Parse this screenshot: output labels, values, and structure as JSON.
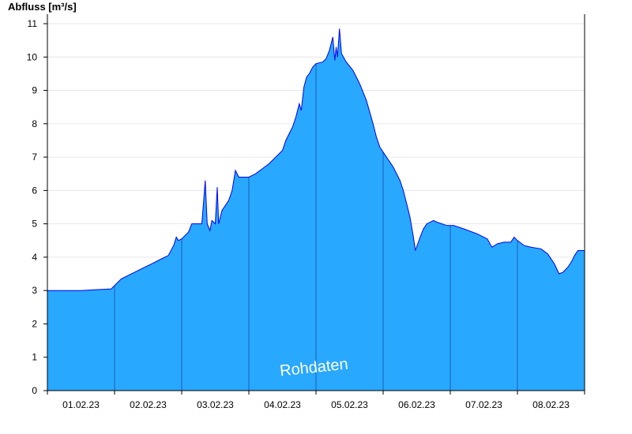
{
  "chart_data": {
    "type": "area",
    "title": "",
    "ylabel": "Abfluss [m³/s]",
    "xlabel": "",
    "watermark": "Rohdaten",
    "ylim": [
      0,
      11
    ],
    "y_ticks": [
      0,
      1,
      2,
      3,
      4,
      5,
      6,
      7,
      8,
      9,
      10,
      11
    ],
    "x_tick_labels": [
      "01.02.23",
      "02.02.23",
      "03.02.23",
      "04.02.23",
      "05.02.23",
      "06.02.23",
      "07.02.23",
      "08.02.23"
    ],
    "day_count": 8,
    "grid": true,
    "colors": {
      "fill": "#29a8ff",
      "line": "#0000ee",
      "day_separator": "#1a5fb0",
      "grid": "#e6e6e6"
    },
    "series": [
      {
        "values": [
          [
            0.0,
            3.0
          ],
          [
            0.05,
            3.0
          ],
          [
            0.5,
            3.0
          ],
          [
            0.95,
            3.05
          ],
          [
            1.0,
            3.15
          ],
          [
            1.1,
            3.35
          ],
          [
            1.2,
            3.45
          ],
          [
            1.3,
            3.55
          ],
          [
            1.4,
            3.65
          ],
          [
            1.55,
            3.8
          ],
          [
            1.7,
            3.95
          ],
          [
            1.8,
            4.05
          ],
          [
            1.88,
            4.35
          ],
          [
            1.92,
            4.6
          ],
          [
            1.95,
            4.5
          ],
          [
            2.0,
            4.55
          ],
          [
            2.1,
            4.75
          ],
          [
            2.15,
            5.0
          ],
          [
            2.3,
            5.0
          ],
          [
            2.35,
            6.3
          ],
          [
            2.38,
            5.0
          ],
          [
            2.42,
            4.8
          ],
          [
            2.45,
            5.1
          ],
          [
            2.5,
            5.0
          ],
          [
            2.53,
            6.1
          ],
          [
            2.55,
            5.0
          ],
          [
            2.6,
            5.4
          ],
          [
            2.7,
            5.7
          ],
          [
            2.75,
            6.0
          ],
          [
            2.8,
            6.6
          ],
          [
            2.85,
            6.4
          ],
          [
            2.9,
            6.4
          ],
          [
            3.0,
            6.4
          ],
          [
            3.05,
            6.45
          ],
          [
            3.1,
            6.5
          ],
          [
            3.2,
            6.65
          ],
          [
            3.3,
            6.8
          ],
          [
            3.4,
            7.0
          ],
          [
            3.5,
            7.2
          ],
          [
            3.55,
            7.5
          ],
          [
            3.6,
            7.7
          ],
          [
            3.65,
            7.9
          ],
          [
            3.7,
            8.2
          ],
          [
            3.75,
            8.6
          ],
          [
            3.78,
            8.4
          ],
          [
            3.82,
            9.1
          ],
          [
            3.86,
            9.4
          ],
          [
            3.9,
            9.5
          ],
          [
            3.95,
            9.7
          ],
          [
            4.0,
            9.8
          ],
          [
            4.1,
            9.85
          ],
          [
            4.15,
            9.95
          ],
          [
            4.2,
            10.2
          ],
          [
            4.25,
            10.6
          ],
          [
            4.28,
            9.9
          ],
          [
            4.3,
            10.3
          ],
          [
            4.32,
            10.0
          ],
          [
            4.35,
            10.85
          ],
          [
            4.38,
            10.1
          ],
          [
            4.45,
            9.85
          ],
          [
            4.55,
            9.6
          ],
          [
            4.65,
            9.2
          ],
          [
            4.75,
            8.7
          ],
          [
            4.85,
            8.0
          ],
          [
            4.9,
            7.6
          ],
          [
            4.95,
            7.3
          ],
          [
            5.05,
            7.0
          ],
          [
            5.15,
            6.7
          ],
          [
            5.25,
            6.3
          ],
          [
            5.3,
            6.0
          ],
          [
            5.35,
            5.6
          ],
          [
            5.4,
            5.2
          ],
          [
            5.45,
            4.6
          ],
          [
            5.48,
            4.2
          ],
          [
            5.55,
            4.6
          ],
          [
            5.6,
            4.85
          ],
          [
            5.65,
            5.0
          ],
          [
            5.75,
            5.1
          ],
          [
            5.8,
            5.05
          ],
          [
            5.95,
            4.95
          ],
          [
            6.05,
            4.95
          ],
          [
            6.2,
            4.85
          ],
          [
            6.4,
            4.7
          ],
          [
            6.55,
            4.55
          ],
          [
            6.62,
            4.3
          ],
          [
            6.7,
            4.4
          ],
          [
            6.8,
            4.45
          ],
          [
            6.9,
            4.45
          ],
          [
            6.95,
            4.6
          ],
          [
            7.0,
            4.5
          ],
          [
            7.1,
            4.35
          ],
          [
            7.2,
            4.3
          ],
          [
            7.35,
            4.25
          ],
          [
            7.45,
            4.1
          ],
          [
            7.55,
            3.8
          ],
          [
            7.62,
            3.5
          ],
          [
            7.68,
            3.55
          ],
          [
            7.75,
            3.7
          ],
          [
            7.8,
            3.85
          ],
          [
            7.85,
            4.05
          ],
          [
            7.9,
            4.2
          ],
          [
            8.0,
            4.2
          ]
        ]
      }
    ]
  }
}
